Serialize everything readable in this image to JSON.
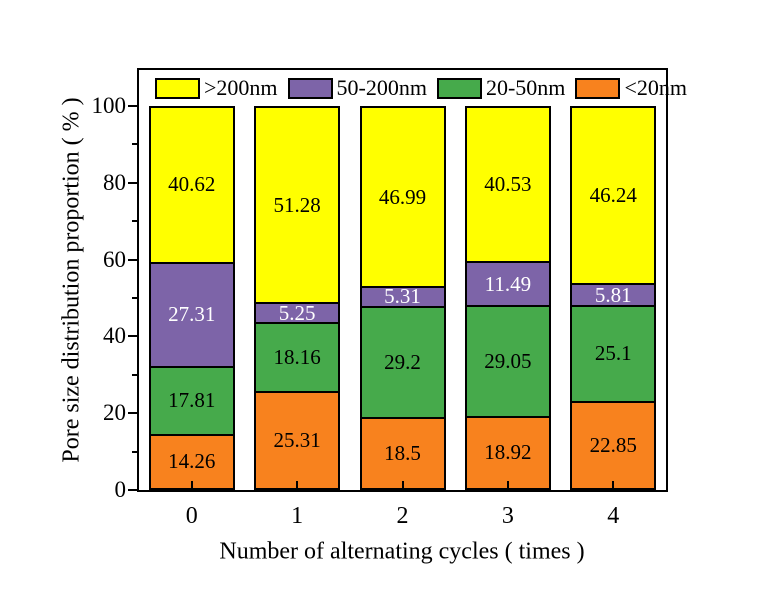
{
  "figure": {
    "background": "#ffffff",
    "frame_color": "#000000"
  },
  "chart_data": {
    "type": "bar",
    "stacked": true,
    "title": "",
    "xlabel": "Number of alternating cycles ( times )",
    "ylabel": "Pore size distribution proportion ( % )",
    "categories": [
      "0",
      "1",
      "2",
      "3",
      "4"
    ],
    "ylim": [
      0,
      100
    ],
    "ytick_labels": [
      "0",
      "20",
      "40",
      "60",
      "80",
      "100"
    ],
    "yticks_major": [
      0,
      20,
      40,
      60,
      80,
      100
    ],
    "yticks_minor": [
      10,
      30,
      50,
      70,
      90
    ],
    "grid": false,
    "legend_position": "top-inside",
    "series": [
      {
        "name": "<20nm",
        "color": "#F8821E",
        "label_color": "#000000",
        "values": [
          14.26,
          25.31,
          18.5,
          18.92,
          22.85
        ],
        "labels": [
          "14.26",
          "25.31",
          "18.5",
          "18.92",
          "22.85"
        ]
      },
      {
        "name": "20-50nm",
        "color": "#46AA4B",
        "label_color": "#000000",
        "values": [
          17.81,
          18.16,
          29.2,
          29.05,
          25.1
        ],
        "labels": [
          "17.81",
          "18.16",
          "29.2",
          "29.05",
          "25.1"
        ]
      },
      {
        "name": "50-200nm",
        "color": "#7D64A8",
        "label_color": "#FFFFFF",
        "values": [
          27.31,
          5.25,
          5.31,
          11.49,
          5.81
        ],
        "labels": [
          "27.31",
          "5.25",
          "5.31",
          "11.49",
          "5.81"
        ]
      },
      {
        "name": ">200nm",
        "color": "#FFFF00",
        "label_color": "#000000",
        "values": [
          40.62,
          51.28,
          46.99,
          40.53,
          46.24
        ],
        "labels": [
          "40.62",
          "51.28",
          "46.99",
          "40.53",
          "46.24"
        ]
      }
    ],
    "legend": [
      {
        "label": ">200nm",
        "color": "#FFFF00"
      },
      {
        "label": "50-200nm",
        "color": "#7D64A8"
      },
      {
        "label": "20-50nm",
        "color": "#46AA4B"
      },
      {
        "label": "<20nm",
        "color": "#F8821E"
      }
    ]
  }
}
